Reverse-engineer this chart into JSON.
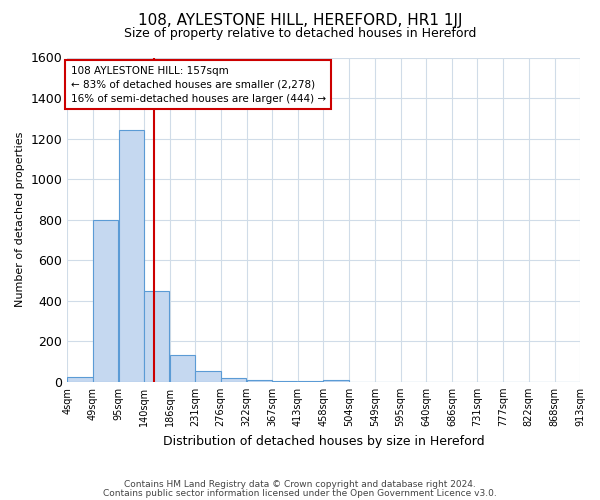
{
  "title": "108, AYLESTONE HILL, HEREFORD, HR1 1JJ",
  "subtitle": "Size of property relative to detached houses in Hereford",
  "xlabel": "Distribution of detached houses by size in Hereford",
  "ylabel": "Number of detached properties",
  "annotation_line1": "108 AYLESTONE HILL: 157sqm",
  "annotation_line2": "← 83% of detached houses are smaller (2,278)",
  "annotation_line3": "16% of semi-detached houses are larger (444) →",
  "property_size": 157,
  "bin_edges": [
    4,
    49,
    95,
    140,
    186,
    231,
    276,
    322,
    367,
    413,
    458,
    504,
    549,
    595,
    640,
    686,
    731,
    777,
    822,
    868,
    913
  ],
  "bin_labels": [
    "4sqm",
    "49sqm",
    "95sqm",
    "140sqm",
    "186sqm",
    "231sqm",
    "276sqm",
    "322sqm",
    "367sqm",
    "413sqm",
    "458sqm",
    "504sqm",
    "549sqm",
    "595sqm",
    "640sqm",
    "686sqm",
    "731sqm",
    "777sqm",
    "822sqm",
    "868sqm",
    "913sqm"
  ],
  "counts": [
    25,
    800,
    1240,
    450,
    130,
    55,
    20,
    10,
    5,
    5,
    10,
    0,
    0,
    0,
    0,
    0,
    0,
    0,
    0,
    0
  ],
  "bar_color": "#c5d8f0",
  "bar_edge_color": "#5b9bd5",
  "vline_color": "#cc0000",
  "vline_x": 157,
  "ylim": [
    0,
    1600
  ],
  "yticks": [
    0,
    200,
    400,
    600,
    800,
    1000,
    1200,
    1400,
    1600
  ],
  "footnote1": "Contains HM Land Registry data © Crown copyright and database right 2024.",
  "footnote2": "Contains public sector information licensed under the Open Government Licence v3.0.",
  "background_color": "#ffffff",
  "grid_color": "#d0dce8"
}
